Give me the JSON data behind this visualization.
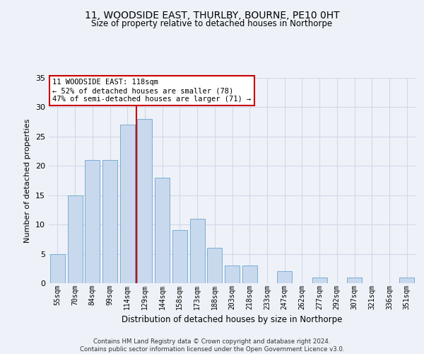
{
  "title1": "11, WOODSIDE EAST, THURLBY, BOURNE, PE10 0HT",
  "title2": "Size of property relative to detached houses in Northorpe",
  "xlabel": "Distribution of detached houses by size in Northorpe",
  "ylabel": "Number of detached properties",
  "categories": [
    "55sqm",
    "70sqm",
    "84sqm",
    "99sqm",
    "114sqm",
    "129sqm",
    "144sqm",
    "158sqm",
    "173sqm",
    "188sqm",
    "203sqm",
    "218sqm",
    "233sqm",
    "247sqm",
    "262sqm",
    "277sqm",
    "292sqm",
    "307sqm",
    "321sqm",
    "336sqm",
    "351sqm"
  ],
  "values": [
    5,
    15,
    21,
    21,
    27,
    28,
    18,
    9,
    11,
    6,
    3,
    3,
    0,
    2,
    0,
    1,
    0,
    1,
    0,
    0,
    1
  ],
  "bar_color": "#c8d9ee",
  "bar_edge_color": "#7aadd4",
  "grid_color": "#d0d8e8",
  "background_color": "#eef2f8",
  "vline_color": "#cc0000",
  "annotation_text": "11 WOODSIDE EAST: 118sqm\n← 52% of detached houses are smaller (78)\n47% of semi-detached houses are larger (71) →",
  "annotation_box_color": "white",
  "annotation_box_edge": "#cc0000",
  "ylim": [
    0,
    35
  ],
  "yticks": [
    0,
    5,
    10,
    15,
    20,
    25,
    30,
    35
  ],
  "footer": "Contains HM Land Registry data © Crown copyright and database right 2024.\nContains public sector information licensed under the Open Government Licence v3.0."
}
